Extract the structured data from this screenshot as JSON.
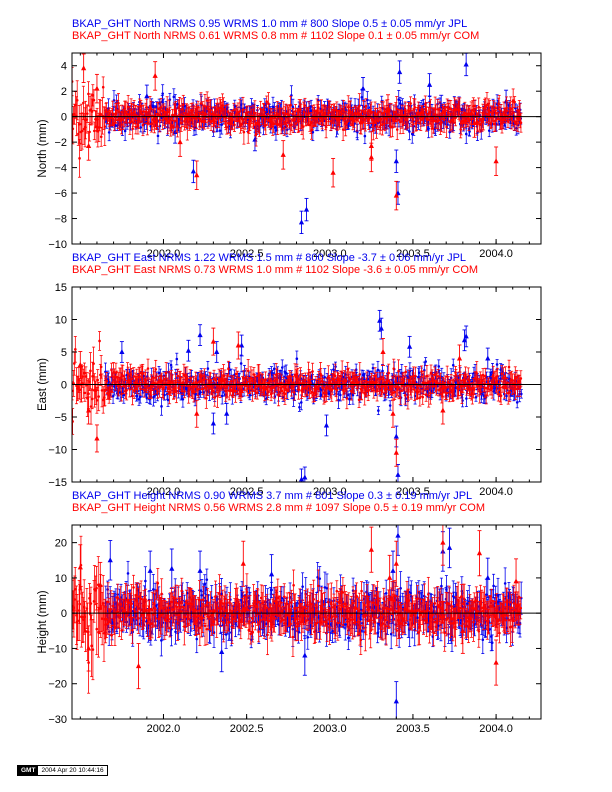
{
  "colors": {
    "jpl": "#0000ee",
    "com": "#ff0000",
    "axis": "#000000"
  },
  "stamp": {
    "logo": "GMT",
    "timestamp": "2004 Apr 20 10:44:16"
  },
  "chart_data": [
    {
      "type": "scatter",
      "headers": [
        "BKAP_GHT North NRMS 0.95 WRMS  1.0 mm # 800 Slope    0.5 ±  0.05 mm/yr JPL",
        "BKAP_GHT North NRMS 0.61 WRMS  0.8 mm # 1102 Slope    0.1 ±  0.05 mm/yr COM"
      ],
      "ylabel": "North (mm)",
      "xlim": [
        2001.45,
        2004.27
      ],
      "ylim": [
        -10,
        5
      ],
      "xticks": [
        2002.0,
        2002.5,
        2003.0,
        2003.5,
        2004.0
      ],
      "xticklabels": [
        "2002.0",
        "2002.5",
        "2003.0",
        "2003.5",
        "2004.0"
      ],
      "yticks": [
        -10,
        -8,
        -6,
        -4,
        -2,
        0,
        2,
        4
      ],
      "yticklabels": [
        "−10",
        "−8",
        "−6",
        "−4",
        "−2",
        "0",
        "2",
        "4"
      ],
      "series": [
        {
          "name": "JPL",
          "color": "#0000ee",
          "x_start": 2001.65,
          "x_end": 2004.15,
          "scatter": 0.55,
          "errbar": 0.55,
          "points": [
            [
              2001.9,
              1.6
            ],
            [
              2002.07,
              -1.2
            ],
            [
              2002.18,
              -4.3
            ],
            [
              2002.55,
              -1.8
            ],
            [
              2002.83,
              -8.3
            ],
            [
              2002.86,
              -7.3
            ],
            [
              2003.2,
              2.2
            ],
            [
              2003.4,
              -3.5
            ],
            [
              2003.41,
              -6.0
            ],
            [
              2003.42,
              3.5
            ],
            [
              2003.6,
              2.5
            ],
            [
              2003.82,
              4.1
            ],
            [
              2003.67,
              0.8
            ],
            [
              2004.06,
              1.2
            ]
          ]
        },
        {
          "name": "COM",
          "color": "#ff0000",
          "x_start": 2001.45,
          "x_end": 2004.15,
          "scatter": 0.45,
          "errbar": 0.7,
          "points": [
            [
              2001.52,
              3.8
            ],
            [
              2001.55,
              -2.3
            ],
            [
              2001.6,
              2.2
            ],
            [
              2001.95,
              3.2
            ],
            [
              2002.1,
              -2.0
            ],
            [
              2002.2,
              -4.6
            ],
            [
              2002.72,
              -3.0
            ],
            [
              2003.02,
              -4.4
            ],
            [
              2003.25,
              -3.2
            ],
            [
              2003.25,
              -2.3
            ],
            [
              2003.4,
              -6.2
            ],
            [
              2003.35,
              0.6
            ],
            [
              2003.87,
              -0.5
            ],
            [
              2004.0,
              -3.5
            ]
          ]
        }
      ]
    },
    {
      "type": "scatter",
      "headers": [
        "BKAP_GHT East NRMS 1.22 WRMS  1.5 mm # 800 Slope   -3.7 ±  0.06 mm/yr JPL",
        "BKAP_GHT East NRMS 0.73 WRMS  1.0 mm # 1102 Slope   -3.6 ±  0.05 mm/yr COM"
      ],
      "ylabel": "East (mm)",
      "xlim": [
        2001.45,
        2004.27
      ],
      "ylim": [
        -15,
        15
      ],
      "xticks": [
        2002.0,
        2002.5,
        2003.0,
        2003.5,
        2004.0
      ],
      "xticklabels": [
        "2002.0",
        "2002.5",
        "2003.0",
        "2003.5",
        "2004.0"
      ],
      "yticks": [
        -15,
        -10,
        -5,
        0,
        5,
        10,
        15
      ],
      "yticklabels": [
        "−15",
        "−10",
        "−5",
        "0",
        "5",
        "10",
        "15"
      ],
      "series": [
        {
          "name": "JPL",
          "color": "#0000ee",
          "x_start": 2001.65,
          "x_end": 2004.15,
          "scatter": 1.2,
          "errbar": 1.0,
          "points": [
            [
              2001.75,
              5.0
            ],
            [
              2002.15,
              5.2
            ],
            [
              2002.22,
              7.6
            ],
            [
              2002.32,
              5.0
            ],
            [
              2002.47,
              6.0
            ],
            [
              2002.85,
              -14.3
            ],
            [
              2002.83,
              -14.6
            ],
            [
              2002.98,
              -6.3
            ],
            [
              2003.3,
              9.8
            ],
            [
              2003.31,
              8.6
            ],
            [
              2003.4,
              -8.0
            ],
            [
              2003.41,
              -13.9
            ],
            [
              2003.48,
              5.8
            ],
            [
              2003.81,
              6.8
            ],
            [
              2003.82,
              7.4
            ],
            [
              2003.95,
              4.0
            ],
            [
              2002.3,
              -6.0
            ],
            [
              2002.38,
              -4.5
            ]
          ]
        },
        {
          "name": "COM",
          "color": "#ff0000",
          "x_start": 2001.45,
          "x_end": 2004.15,
          "scatter": 0.9,
          "errbar": 1.3,
          "points": [
            [
              2001.5,
              3.0
            ],
            [
              2001.55,
              -4.0
            ],
            [
              2001.6,
              -8.3
            ],
            [
              2002.2,
              -4.5
            ],
            [
              2002.3,
              6.6
            ],
            [
              2002.45,
              6.0
            ],
            [
              2003.32,
              5.0
            ],
            [
              2003.38,
              -4.5
            ],
            [
              2003.4,
              -10.5
            ],
            [
              2003.68,
              -4.0
            ],
            [
              2003.78,
              4.0
            ]
          ]
        }
      ]
    },
    {
      "type": "scatter",
      "headers": [
        "BKAP_GHT Height NRMS 0.90 WRMS  3.7 mm # 801 Slope    0.3 ±  0.19 mm/yr JPL",
        "BKAP_GHT Height NRMS 0.56 WRMS  2.8 mm # 1097 Slope    0.5 ±  0.19 mm/yr COM"
      ],
      "ylabel": "Height (mm)",
      "xlim": [
        2001.45,
        2004.27
      ],
      "ylim": [
        -30,
        25
      ],
      "xticks": [
        2002.0,
        2002.5,
        2003.0,
        2003.5,
        2004.0
      ],
      "xticklabels": [
        "2002.0",
        "2002.5",
        "2003.0",
        "2003.5",
        "2004.0"
      ],
      "yticks": [
        -30,
        -20,
        -10,
        0,
        10,
        20
      ],
      "yticklabels": [
        "−30",
        "−20",
        "−10",
        "0",
        "10",
        "20"
      ],
      "series": [
        {
          "name": "JPL",
          "color": "#0000ee",
          "x_start": 2001.65,
          "x_end": 2004.15,
          "scatter": 3.2,
          "errbar": 3.5,
          "points": [
            [
              2001.68,
              15.0
            ],
            [
              2001.92,
              12.0
            ],
            [
              2002.05,
              12.6
            ],
            [
              2002.22,
              12.0
            ],
            [
              2002.65,
              11.0
            ],
            [
              2002.85,
              -12.0
            ],
            [
              2003.4,
              -25.0
            ],
            [
              2003.41,
              22.0
            ],
            [
              2003.38,
              12.0
            ],
            [
              2003.68,
              17.5
            ],
            [
              2003.72,
              18.5
            ],
            [
              2003.95,
              10.0
            ],
            [
              2002.35,
              -11.0
            ]
          ]
        },
        {
          "name": "COM",
          "color": "#ff0000",
          "x_start": 2001.45,
          "x_end": 2004.15,
          "scatter": 2.6,
          "errbar": 4.0,
          "points": [
            [
              2001.5,
              13.0
            ],
            [
              2001.55,
              -10.0
            ],
            [
              2001.62,
              8.0
            ],
            [
              2001.85,
              -15.0
            ],
            [
              2002.48,
              14.0
            ],
            [
              2003.25,
              18.0
            ],
            [
              2003.36,
              10.0
            ],
            [
              2003.4,
              14.0
            ],
            [
              2003.68,
              20.0
            ],
            [
              2003.8,
              -5.0
            ],
            [
              2003.9,
              17.0
            ],
            [
              2004.0,
              -14.0
            ],
            [
              2004.12,
              9.0
            ]
          ]
        }
      ]
    }
  ]
}
